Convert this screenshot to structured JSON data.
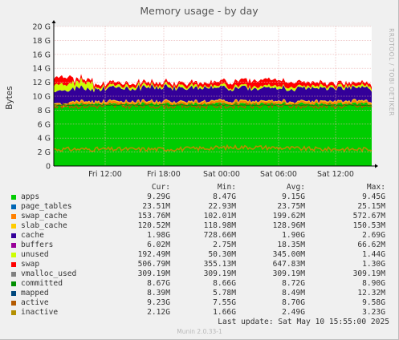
{
  "chart_data": {
    "type": "area",
    "title": "Memory usage - by day",
    "ylabel": "Bytes",
    "yticks": [
      "0",
      "2 G",
      "4 G",
      "6 G",
      "8 G",
      "10 G",
      "12 G",
      "14 G",
      "16 G",
      "18 G",
      "20 G"
    ],
    "ylim": [
      0,
      20
    ],
    "xticks": [
      "Fri 12:00",
      "Fri 18:00",
      "Sat 00:00",
      "Sat 06:00",
      "Sat 12:00"
    ],
    "side_label": "RRDTOOL / TOBI OETIKER",
    "columns": [
      "Cur:",
      "Min:",
      "Avg:",
      "Max:"
    ],
    "series": [
      {
        "name": "apps",
        "color": "#00cc00",
        "cur": "9.29G",
        "min": "8.47G",
        "avg": "9.15G",
        "max": "9.45G",
        "level": 9.15
      },
      {
        "name": "page_tables",
        "color": "#0066b3",
        "cur": "23.51M",
        "min": "22.93M",
        "avg": "23.75M",
        "max": "25.15M",
        "level": 0.02
      },
      {
        "name": "swap_cache",
        "color": "#ff8000",
        "cur": "153.76M",
        "min": "102.01M",
        "avg": "199.62M",
        "max": "572.67M",
        "level": 0.2
      },
      {
        "name": "slab_cache",
        "color": "#ffcc00",
        "cur": "120.52M",
        "min": "118.98M",
        "avg": "128.96M",
        "max": "150.53M",
        "level": 0.13
      },
      {
        "name": "cache",
        "color": "#330099",
        "cur": "1.98G",
        "min": "728.66M",
        "avg": "1.90G",
        "max": "2.69G",
        "level": 1.9
      },
      {
        "name": "buffers",
        "color": "#990099",
        "cur": "6.02M",
        "min": "2.75M",
        "avg": "18.35M",
        "max": "66.62M",
        "level": 0.02
      },
      {
        "name": "unused",
        "color": "#ccff00",
        "cur": "192.49M",
        "min": "50.30M",
        "avg": "345.00M",
        "max": "1.44G",
        "level": 0.35
      },
      {
        "name": "swap",
        "color": "#ff0000",
        "cur": "506.79M",
        "min": "355.13M",
        "avg": "647.83M",
        "max": "1.30G",
        "level": 0.65
      },
      {
        "name": "vmalloc_used",
        "color": "#808080",
        "cur": "309.19M",
        "min": "309.19M",
        "avg": "309.19M",
        "max": "309.19M"
      },
      {
        "name": "committed",
        "color": "#008f00",
        "cur": "8.67G",
        "min": "8.66G",
        "avg": "8.72G",
        "max": "8.90G",
        "line": 8.7
      },
      {
        "name": "mapped",
        "color": "#00487d",
        "cur": "8.39M",
        "min": "5.78M",
        "avg": "8.49M",
        "max": "12.32M"
      },
      {
        "name": "active",
        "color": "#b35a00",
        "cur": "9.23G",
        "min": "7.55G",
        "avg": "8.70G",
        "max": "9.58G",
        "line": 8.7
      },
      {
        "name": "inactive",
        "color": "#b38f00",
        "cur": "2.12G",
        "min": "1.66G",
        "avg": "2.49G",
        "max": "3.23G",
        "line": 2.5
      }
    ]
  },
  "footer": {
    "last_update": "Last update:  Sat May 10 15:55:00 2025",
    "version": "Munin 2.0.33-1"
  }
}
